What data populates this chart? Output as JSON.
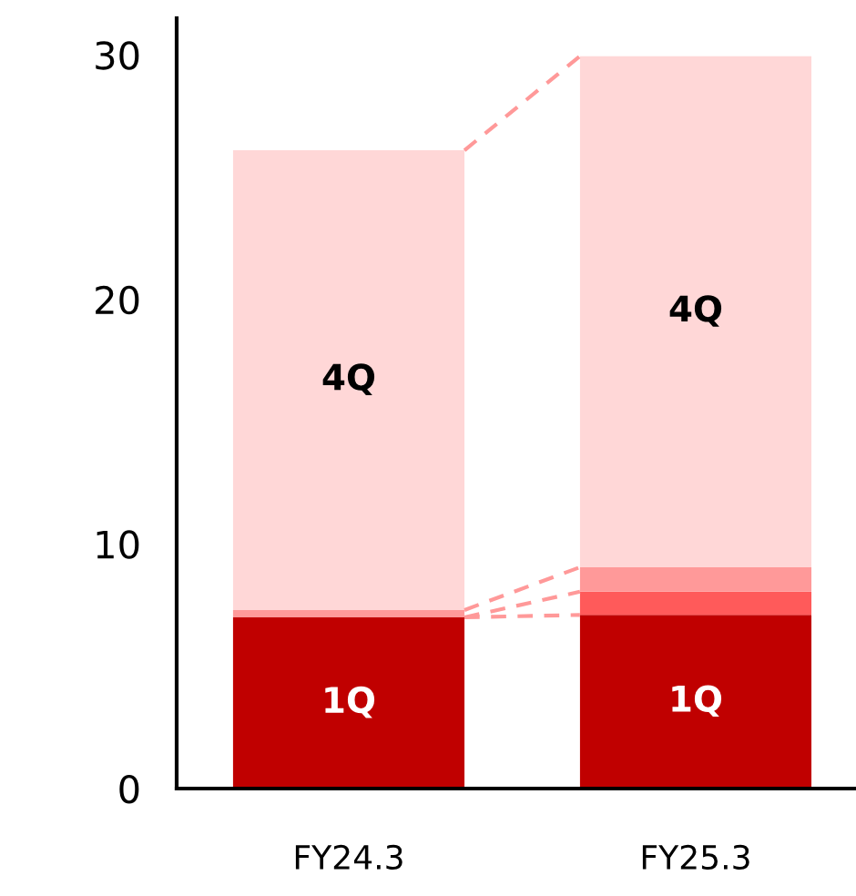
{
  "chart_data": {
    "type": "bar",
    "stacked": true,
    "categories": [
      "FY24.3",
      "FY25.3"
    ],
    "series": [
      {
        "name": "1Q",
        "color": "#c00000",
        "values": [
          7.0,
          7.1
        ]
      },
      {
        "color": "#ff5a5a",
        "values": [
          0,
          0.95
        ]
      },
      {
        "color": "#ff9999",
        "values": [
          0.3,
          1.0
        ]
      },
      {
        "name": "4Q",
        "color": "#ffd7d7",
        "values": [
          18.8,
          20.9
        ]
      }
    ],
    "ylim": [
      0,
      31.5
    ],
    "yticks": [
      0,
      10,
      20,
      30
    ],
    "grid": false,
    "legend": false
  }
}
